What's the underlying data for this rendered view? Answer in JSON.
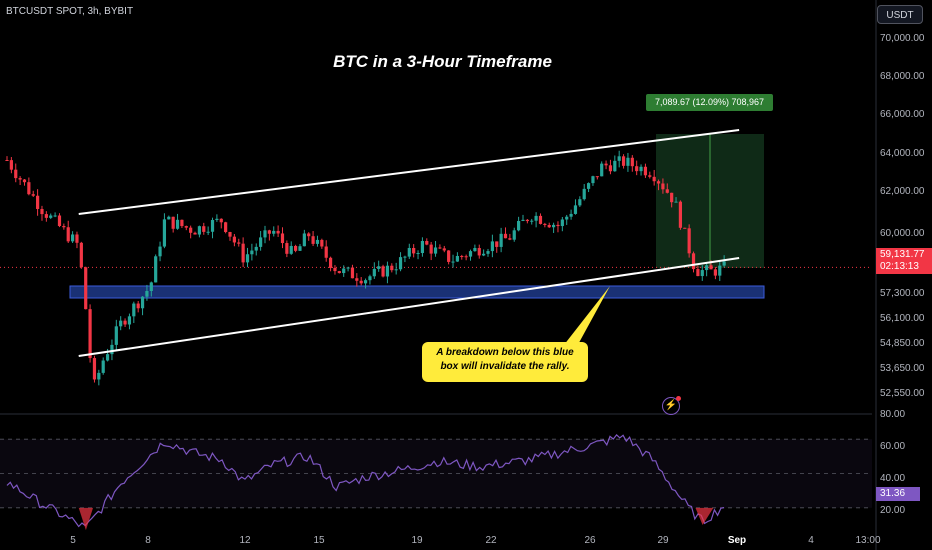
{
  "header": {
    "symbol": "BTCUSDT SPOT, 3h, BYBIT",
    "currency_button": "USDT"
  },
  "title": "BTC in a 3-Hour Timeframe",
  "price_axis": [
    "70,000.00",
    "68,000.00",
    "66,000.00",
    "64,000.00",
    "62,000.00",
    "60,000.00",
    "57,300.00",
    "56,100.00",
    "54,850.00",
    "53,650.00",
    "52,550.00"
  ],
  "rsi_axis": [
    "80.00",
    "60.00",
    "40.00",
    "20.00"
  ],
  "date_axis": [
    "5",
    "8",
    "12",
    "15",
    "19",
    "22",
    "26",
    "29",
    "Sep",
    "4",
    "13:00"
  ],
  "current_price": {
    "price": "59,131.77",
    "countdown": "02:13:13"
  },
  "rsi_value": "31.36",
  "target_label": "7,089.67 (12.09%) 708,967",
  "callout_text": "A breakdown below this blue box will invalidate the rally.",
  "colors": {
    "background": "#000000",
    "up": "#26a69a",
    "down": "#f23645",
    "support_box": "#1e3a8a",
    "rsi_line": "#7e57c2",
    "target_zone": "#1b4d2a",
    "callout": "#ffeb3b"
  },
  "icons": {
    "alert": "lightning-icon"
  },
  "chart_data": {
    "type": "candlestick",
    "title": "BTC in a 3-Hour Timeframe",
    "y_range": [
      52000,
      71000
    ],
    "current_price": 59131.77,
    "support_zone": [
      57600,
      58200
    ],
    "target_zone": [
      59100,
      65800
    ],
    "channel_upper": [
      [
        1,
        61800
      ],
      [
        10,
        66000
      ]
    ],
    "channel_lower": [
      [
        1,
        54700
      ],
      [
        10,
        59600
      ]
    ],
    "close_path": [
      [
        0,
        64500
      ],
      [
        0.5,
        62000
      ],
      [
        1.0,
        60200
      ],
      [
        1.1,
        57000
      ],
      [
        1.2,
        53000
      ],
      [
        1.35,
        54600
      ],
      [
        1.6,
        56400
      ],
      [
        2.0,
        58200
      ],
      [
        2.2,
        61500
      ],
      [
        2.6,
        61000
      ],
      [
        3.0,
        61500
      ],
      [
        3.3,
        59600
      ],
      [
        3.7,
        61000
      ],
      [
        4.0,
        59700
      ],
      [
        4.2,
        60800
      ],
      [
        4.6,
        59000
      ],
      [
        5.0,
        58600
      ],
      [
        5.4,
        59200
      ],
      [
        5.8,
        60300
      ],
      [
        6.2,
        59500
      ],
      [
        6.6,
        60100
      ],
      [
        7.0,
        60600
      ],
      [
        7.3,
        61800
      ],
      [
        7.7,
        61200
      ],
      [
        8.0,
        62600
      ],
      [
        8.3,
        64200
      ],
      [
        8.6,
        64400
      ],
      [
        9.0,
        63900
      ],
      [
        9.3,
        62500
      ],
      [
        9.6,
        59000
      ],
      [
        9.8,
        58900
      ],
      [
        10.0,
        59100
      ]
    ],
    "rsi_range": [
      20,
      80
    ],
    "rsi_levels": [
      70,
      50,
      30
    ],
    "rsi_path": [
      [
        0,
        45
      ],
      [
        0.5,
        32
      ],
      [
        1.1,
        18
      ],
      [
        1.6,
        45
      ],
      [
        2.2,
        69
      ],
      [
        2.6,
        62
      ],
      [
        3.0,
        58
      ],
      [
        3.3,
        45
      ],
      [
        3.7,
        55
      ],
      [
        4.2,
        60
      ],
      [
        4.6,
        42
      ],
      [
        5.0,
        48
      ],
      [
        5.5,
        52
      ],
      [
        6.0,
        57
      ],
      [
        6.6,
        54
      ],
      [
        7.3,
        58
      ],
      [
        7.7,
        62
      ],
      [
        8.3,
        68
      ],
      [
        8.6,
        72
      ],
      [
        9.0,
        58
      ],
      [
        9.5,
        30
      ],
      [
        9.7,
        22
      ],
      [
        10.0,
        31.36
      ]
    ]
  }
}
